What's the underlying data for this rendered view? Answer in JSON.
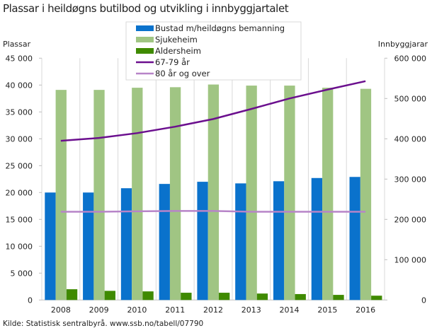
{
  "chart_data": {
    "type": "bar",
    "title": "Plassar i heildøgns butilbod og utvikling i innbyggjartalet",
    "source": "Kilde: Statistisk sentralbyrå. www.ssb.no/tabell/07790",
    "categories": [
      "2008",
      "2009",
      "2010",
      "2011",
      "2012",
      "2013",
      "2014",
      "2015",
      "2016"
    ],
    "y_left": {
      "label": "Plassar",
      "range": [
        0,
        45000
      ],
      "ticks": [
        0,
        5000,
        10000,
        15000,
        20000,
        25000,
        30000,
        35000,
        40000,
        45000
      ],
      "tick_labels": [
        "0",
        "5 000",
        "10 000",
        "15 000",
        "20 000",
        "25 000",
        "30 000",
        "35 000",
        "40 000",
        "45 000"
      ]
    },
    "y_right": {
      "label": "Innbyggjarar",
      "range": [
        0,
        600000
      ],
      "ticks": [
        0,
        100000,
        200000,
        300000,
        400000,
        500000,
        600000
      ],
      "tick_labels": [
        "0",
        "100 000",
        "200 000",
        "300 000",
        "400 000",
        "500 000",
        "600 000"
      ]
    },
    "grid": "vertical",
    "legend_position": "top-center",
    "series": [
      {
        "name": "Bustad m/heildøgns bemanning",
        "kind": "bar",
        "axis": "left",
        "color": "#0a72cc",
        "values": [
          20000,
          20000,
          20800,
          21600,
          22000,
          21700,
          22100,
          22700,
          22900
        ]
      },
      {
        "name": "Sjukeheim",
        "kind": "bar",
        "axis": "left",
        "color": "#a0c583",
        "values": [
          39100,
          39100,
          39500,
          39600,
          40100,
          39900,
          39900,
          39500,
          39300
        ]
      },
      {
        "name": "Aldersheim",
        "kind": "bar",
        "axis": "left",
        "color": "#3f8a00",
        "values": [
          2000,
          1700,
          1600,
          1350,
          1350,
          1200,
          1100,
          950,
          800
        ]
      },
      {
        "name": "67-79 år",
        "kind": "line",
        "axis": "right",
        "color": "#6b0f8e",
        "values": [
          395000,
          402000,
          414000,
          430000,
          449000,
          474000,
          500000,
          522000,
          543000
        ]
      },
      {
        "name": "80 år og over",
        "kind": "line",
        "axis": "right",
        "color": "#b784c8",
        "values": [
          219000,
          219000,
          220000,
          221000,
          221000,
          219000,
          219000,
          219000,
          219000
        ]
      }
    ]
  }
}
